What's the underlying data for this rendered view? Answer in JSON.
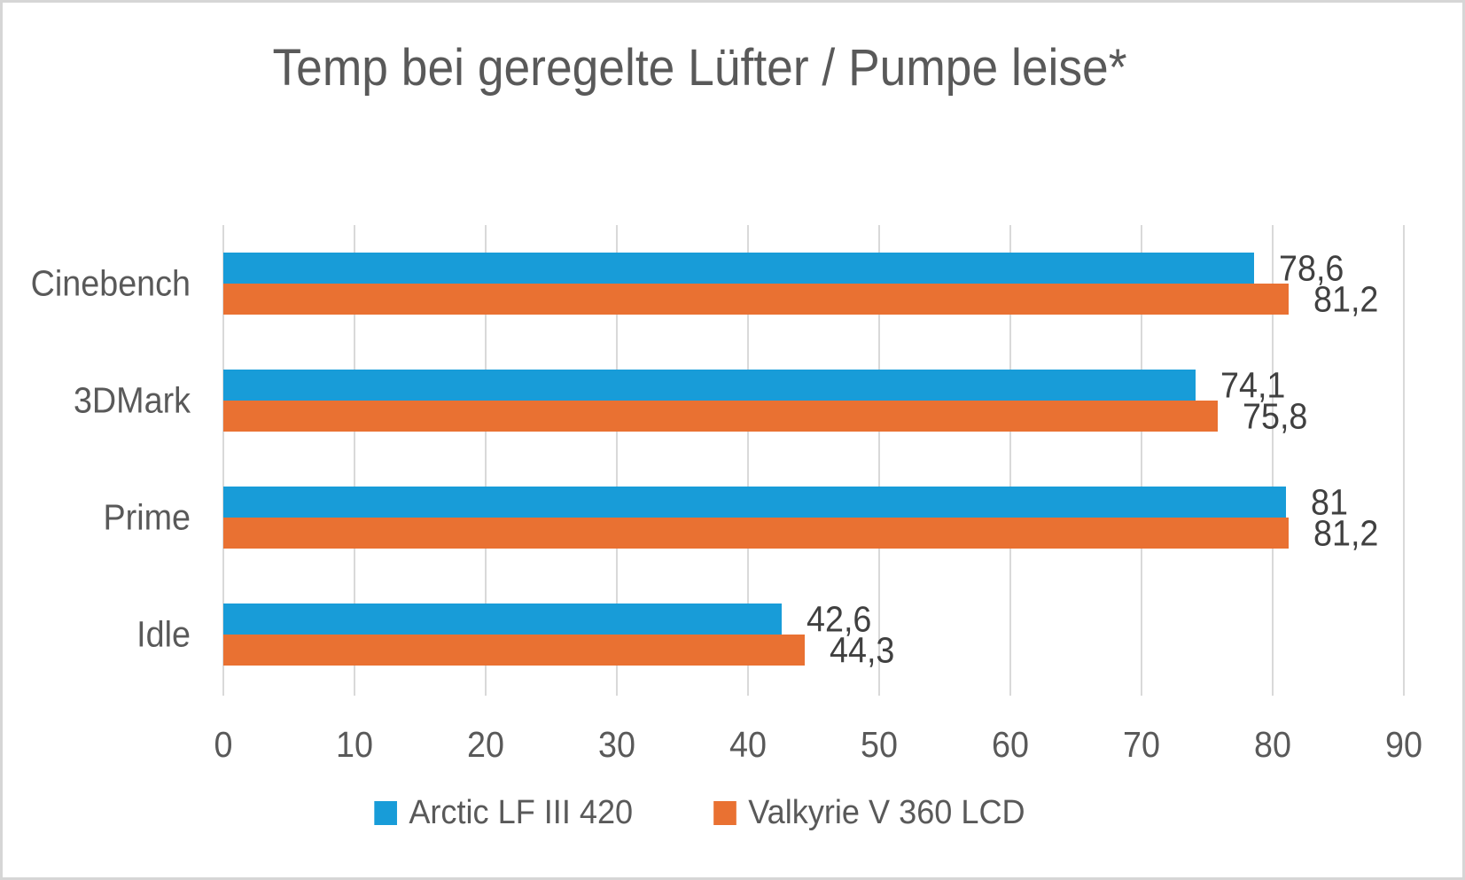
{
  "chart_data": {
    "type": "bar",
    "orientation": "horizontal",
    "title": "Temp bei geregelte Lüfter / Pumpe leise*",
    "categories": [
      "Cinebench",
      "3DMark",
      "Prime",
      "Idle"
    ],
    "series": [
      {
        "name": "Arctic LF III 420",
        "color": "#189CD8",
        "values": [
          78.6,
          74.1,
          81,
          42.6
        ],
        "value_labels": [
          "78,6",
          "74,1",
          "81",
          "42,6"
        ]
      },
      {
        "name": "Valkyrie V 360 LCD",
        "color": "#E97132",
        "values": [
          81.2,
          75.8,
          81.2,
          44.3
        ],
        "value_labels": [
          "81,2",
          "75,8",
          "81,2",
          "44,3"
        ]
      }
    ],
    "xlim": [
      0,
      90
    ],
    "x_ticks": [
      0,
      10,
      20,
      30,
      40,
      50,
      60,
      70,
      80,
      90
    ],
    "x_tick_labels": [
      "0",
      "10",
      "20",
      "30",
      "40",
      "50",
      "60",
      "70",
      "80",
      "90"
    ],
    "grid": "vertical",
    "legend_position": "bottom",
    "colors": {
      "grid_line": "#d9d9d9",
      "title_text": "#595959",
      "axis_text": "#595959",
      "value_label_text": "#404040",
      "border": "#d6d6d6",
      "background": "#ffffff"
    }
  }
}
